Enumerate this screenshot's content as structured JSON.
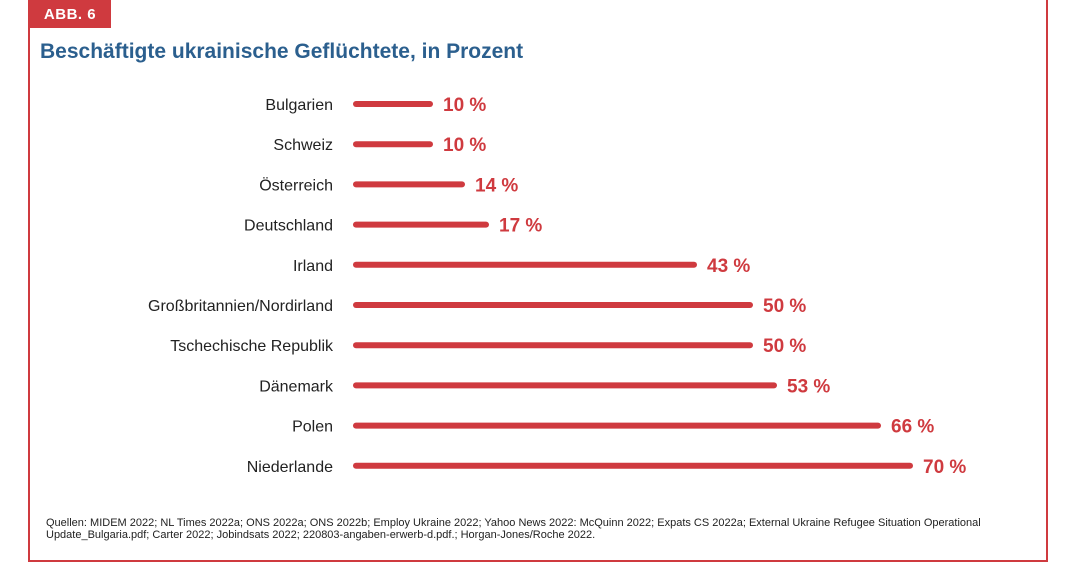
{
  "figure": {
    "tag": "ABB. 6",
    "title": "Beschäftigte ukrainische Geflüchtete, in Prozent",
    "sources": "Quellen: MIDEM 2022; NL Times 2022a; ONS 2022a; ONS 2022b; Employ Ukraine 2022; Yahoo News 2022: McQuinn 2022;  Expats CS 2022a; External Ukraine Refugee Situation Operational Update_Bulgaria.pdf; Carter 2022;  Jobindsats 2022; 220803-angaben-erwerb-d.pdf.; Horgan-Jones/Roche 2022."
  },
  "colors": {
    "accent": "#cf3a3f",
    "title": "#2b5f8e",
    "label": "#222222"
  },
  "chart_data": {
    "type": "bar",
    "orientation": "horizontal",
    "title": "Beschäftigte ukrainische Geflüchtete, in Prozent",
    "categories": [
      "Bulgarien",
      "Schweiz",
      "Österreich",
      "Deutschland",
      "Irland",
      "Großbritannien/Nordirland",
      "Tschechische Republik",
      "Dänemark",
      "Polen",
      "Niederlande"
    ],
    "values": [
      10,
      10,
      14,
      17,
      43,
      50,
      50,
      53,
      66,
      70
    ],
    "value_labels": [
      "10 %",
      "10 %",
      "14 %",
      "17 %",
      "43 %",
      "50 %",
      "50 %",
      "53 %",
      "66 %",
      "70 %"
    ],
    "unit": "%",
    "xlim": [
      0,
      70
    ],
    "grid": false,
    "legend": "none"
  }
}
